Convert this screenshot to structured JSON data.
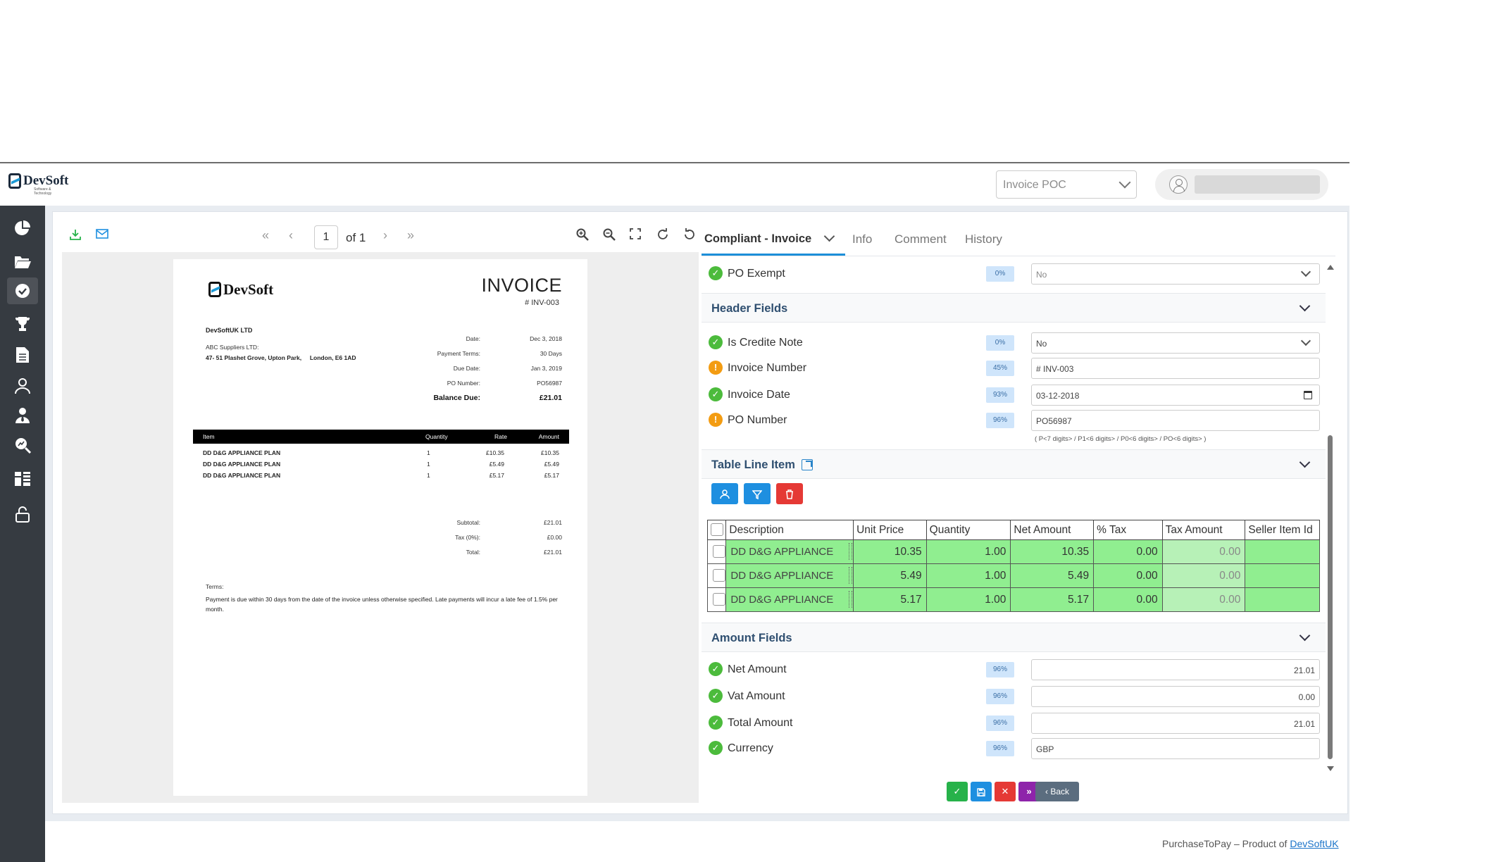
{
  "header": {
    "logo_main": "DevSoft",
    "logo_sub": "Software & Technology",
    "project_select": "Invoice POC"
  },
  "sidebar": {
    "icons": [
      "dashboard-icon",
      "folder-open-icon",
      "check-circle-icon",
      "trophy-icon",
      "document-icon",
      "user-icon",
      "user-tie-icon",
      "search-analytics-icon",
      "forms-icon",
      "lock-open-icon"
    ]
  },
  "pdf_toolbar": {
    "page_number": "1",
    "page_of": "of 1"
  },
  "invoice": {
    "title": "INVOICE",
    "number": "# INV-003",
    "from": "DevSoftUK LTD",
    "to": "ABC Suppliers LTD:",
    "address": "47- 51 Plashet Grove, Upton Park,     London, E6 1AD",
    "meta_labels": [
      "Date:",
      "Payment Terms:",
      "Due Date:",
      "PO Number:"
    ],
    "meta_values": [
      "Dec 3, 2018",
      "30 Days",
      "Jan 3, 2019",
      "PO56987"
    ],
    "balance_label": "Balance Due:",
    "balance_value": "£21.01",
    "items_header": {
      "item": "Item",
      "quantity": "Quantity",
      "rate": "Rate",
      "amount": "Amount"
    },
    "items": [
      {
        "desc": "DD D&G APPLIANCE PLAN",
        "qty": "1",
        "rate": "£10.35",
        "amount": "£10.35"
      },
      {
        "desc": "DD D&G APPLIANCE PLAN",
        "qty": "1",
        "rate": "£5.49",
        "amount": "£5.49"
      },
      {
        "desc": "DD D&G APPLIANCE PLAN",
        "qty": "1",
        "rate": "£5.17",
        "amount": "£5.17"
      }
    ],
    "totals_labels": [
      "Subtotal:",
      "Tax (0%):",
      "Total:"
    ],
    "totals_values": [
      "£21.01",
      "£0.00",
      "£21.01"
    ],
    "terms_heading": "Terms:",
    "terms_body": "Payment is due within 30 days from the date of the invoice unless otherwise specified. Late payments will incur a late fee of 1.5% per month."
  },
  "tabs": [
    {
      "label": "Compliant - Invoice"
    },
    {
      "label": "Info"
    },
    {
      "label": "Comment"
    },
    {
      "label": "History"
    }
  ],
  "fields": {
    "po_exempt": {
      "label": "PO Exempt",
      "conf": "0%",
      "value": "No"
    },
    "header_section": "Header Fields",
    "is_credit_note": {
      "label": "Is Credite Note",
      "conf": "0%",
      "value": "No"
    },
    "invoice_number": {
      "label": "Invoice Number",
      "conf": "45%",
      "value": "# INV-003"
    },
    "invoice_date": {
      "label": "Invoice Date",
      "conf": "93%",
      "value": "03-12-2018"
    },
    "po_number": {
      "label": "PO Number",
      "conf": "96%",
      "value": "PO56987",
      "hint": "( P<7 digits> / P1<6 digits> / P0<6 digits> / PO<6 digits> )"
    },
    "table_section": "Table Line Item",
    "amount_section": "Amount Fields",
    "net_amount": {
      "label": "Net Amount",
      "conf": "96%",
      "value": "21.01"
    },
    "vat_amount": {
      "label": "Vat Amount",
      "conf": "96%",
      "value": "0.00"
    },
    "total_amount": {
      "label": "Total Amount",
      "conf": "96%",
      "value": "21.01"
    },
    "currency": {
      "label": "Currency",
      "conf": "96%",
      "value": "GBP"
    }
  },
  "line_table": {
    "headers": [
      "Description",
      "Unit Price",
      "Quantity",
      "Net Amount",
      "% Tax",
      "Tax Amount",
      "Seller Item Id"
    ],
    "rows": [
      [
        "DD D&G APPLIANCE",
        "10.35",
        "1.00",
        "10.35",
        "0.00",
        "0.00",
        ""
      ],
      [
        "DD D&G APPLIANCE",
        "5.49",
        "1.00",
        "5.49",
        "0.00",
        "0.00",
        ""
      ],
      [
        "DD D&G APPLIANCE",
        "5.17",
        "1.00",
        "5.17",
        "0.00",
        "0.00",
        ""
      ]
    ]
  },
  "actions": {
    "back_label": "Back"
  },
  "colors": {
    "approve": "#27b24a",
    "save": "#1e8fe0",
    "reject": "#e53935",
    "forward": "#8e24aa",
    "back": "#5b6d7f",
    "row_green": "#90ee90"
  },
  "footer": {
    "text": "PurchaseToPay – Product of ",
    "link": "DevSoftUK"
  }
}
